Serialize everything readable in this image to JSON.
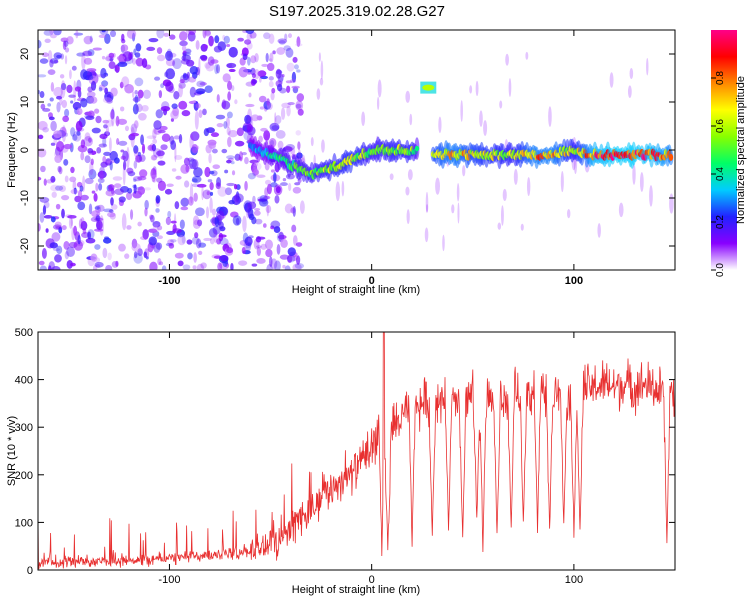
{
  "figure_title": "S197.2025.319.02.28.G27",
  "chart_data": [
    {
      "type": "heatmap",
      "title": "S197.2025.319.02.28.G27",
      "xlabel": "Height of straight line (km)",
      "ylabel": "Frequency (Hz)",
      "xlim": [
        -165,
        150
      ],
      "ylim": [
        -25,
        25
      ],
      "xticks": [
        -100,
        0,
        100
      ],
      "yticks": [
        -20,
        -10,
        0,
        10,
        20
      ],
      "colorbar": {
        "label": "Normalized spectral amplitude",
        "range": [
          0,
          1
        ],
        "ticks": [
          "0.0",
          "0.2",
          "0.4",
          "0.6",
          "0.8"
        ],
        "colormap": [
          "#ffffff",
          "#8800ff",
          "#2222ff",
          "#00ccff",
          "#00ff66",
          "#88ff00",
          "#ffff00",
          "#ff8800",
          "#ff0000",
          "#ff0088"
        ]
      },
      "ridge": {
        "description": "dominant frequency ridge",
        "x": [
          -60,
          -50,
          -40,
          -30,
          -20,
          -10,
          0,
          10,
          20,
          25,
          30,
          40,
          50,
          60,
          70,
          80,
          90,
          100,
          110,
          120,
          130,
          140,
          148
        ],
        "y": [
          1,
          -1,
          -3,
          -5,
          -4,
          -2,
          0,
          0,
          0,
          0,
          -1,
          -1,
          -1,
          -1,
          -1,
          -1,
          -1,
          0,
          -1,
          -1,
          -1,
          -1,
          -1
        ],
        "amplitude": [
          0.3,
          0.4,
          0.5,
          0.55,
          0.6,
          0.65,
          0.55,
          0.6,
          0.6,
          0.3,
          0.7,
          0.8,
          0.7,
          0.65,
          0.6,
          0.8,
          0.8,
          0.6,
          0.9,
          0.95,
          0.95,
          0.9,
          0.8
        ]
      },
      "features": [
        {
          "label": "isolated tone",
          "x": 28,
          "y": 13,
          "amplitude": 0.6
        },
        {
          "label": "low-amplitude broadband scatter",
          "x_range": [
            -165,
            -55
          ],
          "y_range": [
            -25,
            25
          ],
          "amplitude": 0.15
        }
      ]
    },
    {
      "type": "line",
      "xlabel": "Height of straight line (km)",
      "ylabel": "SNR (10 * v/v)",
      "xlim": [
        -165,
        150
      ],
      "ylim": [
        0,
        500
      ],
      "xticks": [
        -100,
        0,
        100
      ],
      "yticks": [
        0,
        100,
        200,
        300,
        400,
        500
      ],
      "color": "#e83030",
      "x": [
        -165,
        -150,
        -130,
        -110,
        -100,
        -90,
        -80,
        -70,
        -60,
        -50,
        -45,
        -40,
        -35,
        -30,
        -25,
        -20,
        -15,
        -10,
        -5,
        0,
        2,
        5,
        8,
        10,
        15,
        20,
        25,
        30,
        35,
        40,
        45,
        50,
        55,
        60,
        65,
        70,
        75,
        80,
        85,
        90,
        95,
        100,
        105,
        110,
        115,
        120,
        125,
        130,
        135,
        140,
        145,
        148,
        150
      ],
      "y": [
        15,
        18,
        20,
        22,
        25,
        28,
        30,
        35,
        40,
        55,
        70,
        90,
        110,
        130,
        150,
        170,
        190,
        200,
        230,
        250,
        280,
        350,
        230,
        300,
        320,
        340,
        350,
        360,
        355,
        345,
        350,
        365,
        355,
        360,
        350,
        370,
        360,
        375,
        365,
        370,
        360,
        365,
        380,
        385,
        390,
        385,
        390,
        385,
        390,
        380,
        375,
        370,
        375
      ],
      "dips": [
        {
          "x": 5,
          "y": 30
        },
        {
          "x": 8,
          "y": 50
        },
        {
          "x": 20,
          "y": 60
        },
        {
          "x": 30,
          "y": 70
        },
        {
          "x": 38,
          "y": 80
        },
        {
          "x": 45,
          "y": 60
        },
        {
          "x": 52,
          "y": 100
        },
        {
          "x": 55,
          "y": 50
        },
        {
          "x": 62,
          "y": 70
        },
        {
          "x": 69,
          "y": 80
        },
        {
          "x": 75,
          "y": 90
        },
        {
          "x": 82,
          "y": 90
        },
        {
          "x": 88,
          "y": 85
        },
        {
          "x": 95,
          "y": 90
        },
        {
          "x": 100,
          "y": 80
        },
        {
          "x": 103,
          "y": 75
        },
        {
          "x": 146,
          "y": 60
        }
      ],
      "peak": {
        "x": 6,
        "y": 500
      }
    }
  ]
}
